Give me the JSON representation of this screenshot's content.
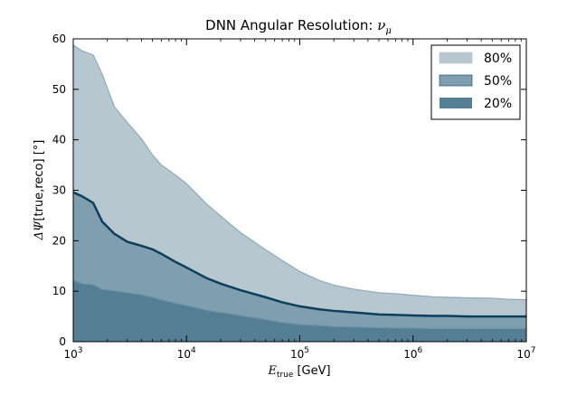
{
  "chart_data": {
    "type": "area",
    "title_main": "DNN Angular Resolution: ",
    "title_symbol": "ν",
    "title_subscript": "μ",
    "xlabel": {
      "symbol": "E",
      "subscript": "true",
      "unit": "[GeV]"
    },
    "ylabel": {
      "symbol": "ΔΨ",
      "text": "[true,reco] [°]"
    },
    "x_scale": "log",
    "xlim": [
      1000,
      10000000
    ],
    "ylim": [
      0,
      60
    ],
    "x_ticks": [
      {
        "value": 1000,
        "base": "10",
        "exp": "3"
      },
      {
        "value": 10000,
        "base": "10",
        "exp": "4"
      },
      {
        "value": 100000,
        "base": "10",
        "exp": "5"
      },
      {
        "value": 1000000,
        "base": "10",
        "exp": "6"
      },
      {
        "value": 10000000,
        "base": "10",
        "exp": "7"
      }
    ],
    "y_ticks": [
      "0",
      "10",
      "20",
      "30",
      "40",
      "50",
      "60"
    ],
    "grid": false,
    "legend_position": "top-right",
    "x": [
      1000,
      1200,
      1500,
      1800,
      2300,
      3000,
      4000,
      5000,
      6000,
      8000,
      10000,
      15000,
      20000,
      30000,
      50000,
      70000,
      100000,
      150000,
      200000,
      300000,
      500000,
      700000,
      1000000,
      1500000,
      2000000,
      3000000,
      5000000,
      7000000,
      10000000
    ],
    "series": [
      {
        "name": "80%",
        "color": "#b6c7cf",
        "edge": "#8fa9b6",
        "values": [
          58.8,
          57.6,
          56.8,
          53,
          46.6,
          43.4,
          40.2,
          37,
          35,
          33,
          31.3,
          27.3,
          24.9,
          21.6,
          18.2,
          16.1,
          13.9,
          12.1,
          11.2,
          10.4,
          9.7,
          9.5,
          9.2,
          8.9,
          8.8,
          8.7,
          8.6,
          8.4,
          8.3
        ]
      },
      {
        "name": "50%",
        "color": "#7f9fb0",
        "edge": "#0d3e5c",
        "values": [
          29.6,
          28.8,
          27.5,
          23.8,
          21.4,
          19.8,
          19,
          18.3,
          17.4,
          15.8,
          14.7,
          12.6,
          11.5,
          10.2,
          8.8,
          7.8,
          7,
          6.4,
          6.1,
          5.8,
          5.4,
          5.3,
          5.2,
          5.1,
          5.1,
          5,
          5,
          5,
          5
        ]
      },
      {
        "name": "20%",
        "color": "#547e93",
        "edge": "#6d93a6",
        "values": [
          12.2,
          11.5,
          11.3,
          10.4,
          10.1,
          9.7,
          9.3,
          8.8,
          8.3,
          7.6,
          7.2,
          6.2,
          5.8,
          5.2,
          4.4,
          3.8,
          3.4,
          3.2,
          3,
          2.9,
          2.8,
          2.7,
          2.7,
          2.6,
          2.6,
          2.6,
          2.6,
          2.6,
          2.6
        ]
      }
    ]
  }
}
